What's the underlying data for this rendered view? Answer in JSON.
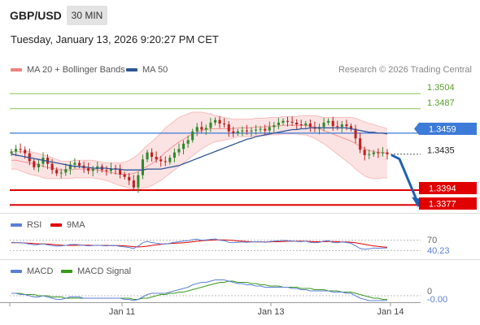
{
  "header": {
    "symbol": "GBP/USD",
    "timeframe": "30 MIN",
    "datetime": "Tuesday, January 13, 2026 9:20:27 PM CET",
    "research": "Research © 2026 Trading Central"
  },
  "colors": {
    "bollinger": "#f08080",
    "ma50": "#2f5597",
    "resistance": "#8cc152",
    "pivot": "#3d7bd9",
    "support": "#e00000",
    "rsi": "#5b7fd6",
    "ninema": "#e00000",
    "macd": "#5b7fd6",
    "macd_signal": "#3a9a1a",
    "candle_up": "#2e8b2e",
    "candle_down": "#c02020"
  },
  "chart_data": [
    {
      "type": "candlestick",
      "title": "GBP/USD",
      "legend": [
        "MA 20 + Bollinger Bands",
        "MA 50"
      ],
      "legend_placement": "top-left",
      "ylim": [
        1.3368,
        1.3521
      ],
      "x_ticks": [
        "Jan 11",
        "Jan 13",
        "Jan 14"
      ],
      "levels": {
        "resistance": [
          1.3504,
          1.3487
        ],
        "pivot": 1.3459,
        "last": 1.3435,
        "support": [
          1.3394,
          1.3377
        ]
      },
      "level_labels": {
        "r2": "1.3504",
        "r1": "1.3487",
        "pivot": "1.3459",
        "last": "1.3435",
        "s1": "1.3394",
        "s2": "1.3377"
      },
      "close": [
        1.3438,
        1.3441,
        1.344,
        1.3436,
        1.3427,
        1.342,
        1.3424,
        1.3431,
        1.3424,
        1.3417,
        1.3413,
        1.3414,
        1.3418,
        1.3423,
        1.3425,
        1.3422,
        1.3419,
        1.3416,
        1.3418,
        1.3421,
        1.3417,
        1.3416,
        1.3419,
        1.3418,
        1.3412,
        1.3409,
        1.3405,
        1.3397,
        1.3411,
        1.3429,
        1.3437,
        1.3432,
        1.3429,
        1.3427,
        1.3426,
        1.3431,
        1.3437,
        1.3441,
        1.3447,
        1.3451,
        1.3461,
        1.3466,
        1.3463,
        1.3465,
        1.3471,
        1.3474,
        1.347,
        1.3469,
        1.3461,
        1.3459,
        1.3461,
        1.3462,
        1.3461,
        1.3462,
        1.3463,
        1.3464,
        1.3462,
        1.3466,
        1.3468,
        1.3471,
        1.3473,
        1.3472,
        1.3471,
        1.3469,
        1.3468,
        1.347,
        1.3466,
        1.3464,
        1.3466,
        1.3471,
        1.3473,
        1.3467,
        1.3466,
        1.3469,
        1.3467,
        1.3464,
        1.3453,
        1.344,
        1.3434,
        1.3435,
        1.3437,
        1.3436,
        1.3437,
        1.3435
      ],
      "ma20": [
        1.3428,
        1.3428,
        1.3427,
        1.3426,
        1.3425,
        1.3424,
        1.3423,
        1.3421,
        1.342,
        1.3419,
        1.3418,
        1.3417,
        1.3417,
        1.3417,
        1.3418,
        1.3418,
        1.3418,
        1.3418,
        1.3418,
        1.3417,
        1.3416,
        1.3415,
        1.3414,
        1.3413,
        1.3412,
        1.3412,
        1.3412,
        1.3413,
        1.3415,
        1.3418,
        1.3421,
        1.3424,
        1.3428,
        1.3432,
        1.3437,
        1.3441,
        1.3445,
        1.3449,
        1.3452,
        1.3455,
        1.3458,
        1.346,
        1.3462,
        1.3463,
        1.3464,
        1.3464,
        1.3464,
        1.3464,
        1.3464,
        1.3464,
        1.3465,
        1.3465,
        1.3465,
        1.3465,
        1.3466,
        1.3466,
        1.3466,
        1.3467,
        1.3467,
        1.3467,
        1.3468,
        1.3468,
        1.3468,
        1.3468,
        1.3468,
        1.3468,
        1.3467,
        1.3466,
        1.3464,
        1.3462,
        1.346,
        1.3458,
        1.3456,
        1.3454,
        1.3452,
        1.345,
        1.3447,
        1.3444,
        1.3441,
        1.3439,
        1.3438,
        1.3437,
        1.3437,
        1.3436
      ],
      "ma50": [
        1.3435,
        1.3434,
        1.3433,
        1.3432,
        1.3431,
        1.343,
        1.3429,
        1.3428,
        1.3427,
        1.3426,
        1.3425,
        1.3424,
        1.3423,
        1.3422,
        1.3421,
        1.3421,
        1.342,
        1.342,
        1.3419,
        1.3419,
        1.3419,
        1.3419,
        1.3418,
        1.3418,
        1.3418,
        1.3417,
        1.3417,
        1.3417,
        1.3417,
        1.3417,
        1.3418,
        1.3418,
        1.3418,
        1.3418,
        1.3419,
        1.342,
        1.3421,
        1.3422,
        1.3424,
        1.3426,
        1.3428,
        1.343,
        1.3432,
        1.3434,
        1.3436,
        1.3438,
        1.344,
        1.3442,
        1.3444,
        1.3446,
        1.3448,
        1.345,
        1.3452,
        1.3453,
        1.3455,
        1.3456,
        1.3457,
        1.3458,
        1.3459,
        1.346,
        1.3461,
        1.3462,
        1.3463,
        1.3463,
        1.3464,
        1.3464,
        1.3465,
        1.3465,
        1.3465,
        1.3465,
        1.3465,
        1.3465,
        1.3465,
        1.3465,
        1.3465,
        1.3464,
        1.3463,
        1.3462,
        1.3461,
        1.346,
        1.346,
        1.3459,
        1.3459,
        1.3458
      ],
      "bb_width": [
        0.001,
        0.001,
        0.0011,
        0.0012,
        0.0013,
        0.0013,
        0.0013,
        0.0013,
        0.0013,
        0.0012,
        0.0011,
        0.001,
        0.001,
        0.001,
        0.001,
        0.001,
        0.001,
        0.001,
        0.001,
        0.001,
        0.001,
        0.001,
        0.0011,
        0.0012,
        0.0013,
        0.0014,
        0.0016,
        0.0018,
        0.002,
        0.0022,
        0.0024,
        0.0025,
        0.0026,
        0.0027,
        0.0028,
        0.0028,
        0.0028,
        0.0028,
        0.0027,
        0.0026,
        0.0025,
        0.0023,
        0.0021,
        0.0019,
        0.0017,
        0.0015,
        0.0014,
        0.0013,
        0.0012,
        0.0011,
        0.001,
        0.001,
        0.001,
        0.001,
        0.001,
        0.001,
        0.001,
        0.001,
        0.001,
        0.001,
        0.001,
        0.001,
        0.001,
        0.001,
        0.0011,
        0.0011,
        0.0012,
        0.0013,
        0.0014,
        0.0015,
        0.0017,
        0.0019,
        0.0021,
        0.0023,
        0.0025,
        0.0027,
        0.0029,
        0.003,
        0.0031,
        0.0031,
        0.0031,
        0.003,
        0.0029,
        0.0028
      ]
    },
    {
      "type": "line",
      "title": "RSI",
      "legend": [
        "RSI",
        "9MA"
      ],
      "levels": {
        "upper": 70,
        "lower": 30
      },
      "level_labels": {
        "upper": "70",
        "last": "40.23"
      },
      "ylim": [
        0,
        100
      ],
      "rsi": [
        62,
        61,
        60,
        58,
        55,
        52,
        53,
        56,
        52,
        49,
        47,
        48,
        50,
        53,
        54,
        52,
        50,
        48,
        49,
        51,
        49,
        48,
        50,
        49,
        46,
        44,
        42,
        38,
        47,
        60,
        65,
        61,
        58,
        56,
        55,
        58,
        62,
        64,
        67,
        68,
        72,
        74,
        70,
        71,
        73,
        75,
        70,
        68,
        62,
        60,
        62,
        63,
        62,
        63,
        64,
        64,
        62,
        65,
        66,
        68,
        69,
        68,
        67,
        65,
        64,
        66,
        62,
        60,
        62,
        66,
        68,
        61,
        60,
        63,
        61,
        58,
        48,
        38,
        35,
        37,
        40,
        39,
        40,
        40.23
      ],
      "ma9": [
        60,
        60,
        60,
        59,
        58,
        57,
        56,
        56,
        55,
        54,
        52,
        51,
        50,
        50,
        50,
        51,
        51,
        51,
        50,
        50,
        50,
        50,
        49,
        49,
        49,
        48,
        47,
        45,
        44,
        45,
        47,
        50,
        52,
        54,
        56,
        57,
        58,
        59,
        60,
        62,
        64,
        66,
        68,
        69,
        70,
        71,
        71,
        71,
        70,
        69,
        67,
        66,
        65,
        64,
        63,
        63,
        63,
        63,
        64,
        64,
        65,
        66,
        66,
        66,
        66,
        66,
        65,
        64,
        64,
        64,
        65,
        65,
        64,
        63,
        63,
        62,
        60,
        57,
        54,
        51,
        48,
        46,
        44,
        43
      ]
    },
    {
      "type": "line",
      "title": "MACD",
      "legend": [
        "MACD",
        "MACD Signal"
      ],
      "level_labels": {
        "zero": "0",
        "last": "-0.00"
      },
      "ylim": [
        -0.0004,
        0.0016
      ],
      "macd": [
        0.0002,
        0.0002,
        0.0001,
        0.0001,
        0.0,
        -0.0001,
        -0.0001,
        0.0,
        -0.0001,
        -0.0002,
        -0.0003,
        -0.0003,
        -0.0002,
        -0.0001,
        -0.0001,
        -0.0001,
        -0.0002,
        -0.0002,
        -0.0002,
        -0.0002,
        -0.0002,
        -0.0002,
        -0.0002,
        -0.0002,
        -0.0002,
        -0.0003,
        -0.0003,
        -0.0004,
        -0.0003,
        -0.0001,
        0.0001,
        0.0002,
        0.0002,
        0.0002,
        0.0002,
        0.0003,
        0.0004,
        0.0005,
        0.0006,
        0.0007,
        0.0009,
        0.001,
        0.0011,
        0.0011,
        0.0012,
        0.0013,
        0.0013,
        0.0013,
        0.0012,
        0.0011,
        0.001,
        0.001,
        0.0009,
        0.0009,
        0.0008,
        0.0008,
        0.0007,
        0.0007,
        0.0007,
        0.0007,
        0.0007,
        0.0007,
        0.0006,
        0.0006,
        0.0005,
        0.0005,
        0.0004,
        0.0004,
        0.0004,
        0.0004,
        0.0004,
        0.0003,
        0.0003,
        0.0003,
        0.0002,
        0.0002,
        0.0,
        -0.0002,
        -0.0003,
        -0.0004,
        -0.0004,
        -0.0004,
        -0.0004,
        -0.0004
      ],
      "signal": [
        0.0002,
        0.0002,
        0.0002,
        0.0001,
        0.0001,
        0.0001,
        0.0,
        0.0,
        0.0,
        -0.0001,
        -0.0001,
        -0.0001,
        -0.0002,
        -0.0002,
        -0.0002,
        -0.0002,
        -0.0002,
        -0.0002,
        -0.0002,
        -0.0002,
        -0.0002,
        -0.0002,
        -0.0002,
        -0.0002,
        -0.0002,
        -0.0002,
        -0.0002,
        -0.0003,
        -0.0003,
        -0.0002,
        -0.0002,
        -0.0001,
        0.0,
        0.0001,
        0.0001,
        0.0002,
        0.0002,
        0.0003,
        0.0003,
        0.0004,
        0.0005,
        0.0006,
        0.0007,
        0.0008,
        0.0009,
        0.001,
        0.0011,
        0.0011,
        0.0012,
        0.0012,
        0.0011,
        0.0011,
        0.0011,
        0.001,
        0.001,
        0.0009,
        0.0009,
        0.0008,
        0.0008,
        0.0008,
        0.0007,
        0.0007,
        0.0007,
        0.0007,
        0.0006,
        0.0006,
        0.0006,
        0.0005,
        0.0005,
        0.0005,
        0.0004,
        0.0004,
        0.0004,
        0.0003,
        0.0003,
        0.0003,
        0.0002,
        0.0001,
        0.0,
        -0.0001,
        -0.0002,
        -0.0002,
        -0.0003,
        -0.0003
      ]
    }
  ]
}
